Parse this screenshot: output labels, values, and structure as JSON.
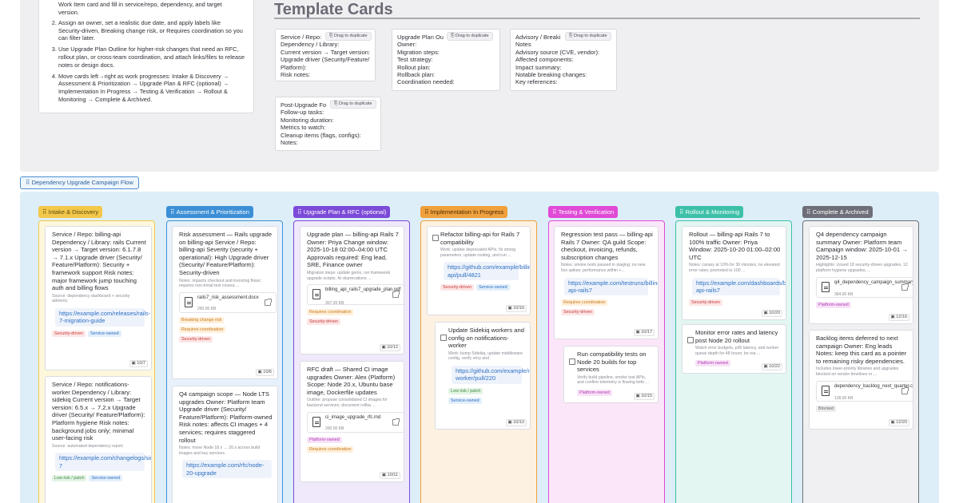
{
  "instructions": {
    "line0": "Work Item card and fill in service/repo, dependency, and target",
    "line0b": "version.",
    "items": [
      "Assign an owner, set a realistic due date, and apply labels like Security-driven, Breaking change risk, or Requires coordination so you can filter later.",
      "Use Upgrade Plan Outline for higher-risk changes that need an RFC, rollout plan, or cross-team coordination, and attach links/files to release notes or design docs.",
      "Move cards left→right as work progresses: Intake & Discovery → Assessment & Prioritization → Upgrade Plan & RFC (optional) → Implementation In Progress → Testing & Verification → Rollout & Monitoring → Complete & Archived."
    ]
  },
  "templates": {
    "title": "Template Cards",
    "drag_label": "Drag to duplicate",
    "cards": [
      {
        "title": "Service / Repo:",
        "lines": [
          "Dependency / Library:",
          "Current version → Target version:",
          "Upgrade driver (Security/Feature/",
          "Platform):",
          "Risk notes:"
        ]
      },
      {
        "title": "Upgrade Plan Ou",
        "lines": [
          "Owner:",
          "Migration steps:",
          "Test strategy:",
          "Rollout plan:",
          "Rollback plan:",
          "Coordination needed:"
        ]
      },
      {
        "title": "Advisory / Breaki",
        "lines": [
          "Notes",
          "Advisory source (CVE, vendor):",
          "Affected components:",
          "Impact summary:",
          "Notable breaking changes:",
          "Key references:"
        ]
      },
      {
        "title": "Post-Upgrade Fo",
        "lines": [
          "Follow-up tasks:",
          "Monitoring duration:",
          "Metrics to watch:",
          "Cleanup items (flags, configs):",
          "Notes:"
        ]
      }
    ]
  },
  "flow": {
    "section_label": "Dependency Upgrade Campaign Flow",
    "columns": [
      {
        "label": "Intake & Discovery",
        "color": "#f3c84a",
        "bg": "#fdf7dc",
        "text": "#5a4a10"
      },
      {
        "label": "Assessment & Prioritization",
        "color": "#3c8fd6",
        "bg": "#e6f1fb",
        "text": "#ffffff"
      },
      {
        "label": "Upgrade Plan & RFC (optional)",
        "color": "#7c4ad8",
        "bg": "#efe9fb",
        "text": "#ffffff"
      },
      {
        "label": "Implementation In Progress",
        "color": "#f0a03c",
        "bg": "#fdf1e2",
        "text": "#4a2e08"
      },
      {
        "label": "Testing & Verification",
        "color": "#e04ad6",
        "bg": "#fbe6f9",
        "text": "#ffffff"
      },
      {
        "label": "Rollout & Monitoring",
        "color": "#3cc0a8",
        "bg": "#e3f6f2",
        "text": "#ffffff"
      },
      {
        "label": "Complete & Archived",
        "color": "#6e6e78",
        "bg": "#f0f0f2",
        "text": "#ffffff"
      }
    ]
  },
  "cards": {
    "c1a": {
      "body": "Service / Repo: billing-api Dependency / Library: rails Current version → Target version: 6.1.7.8 → 7.1.x Upgrade driver (Security/ Feature/Platform): Security + framework support Risk notes: major framework jump touching auth and billing flows",
      "note": "Source: dependency dashboard + security advisory.",
      "link": "https://example.com/releases/rails-7-migration-guide",
      "tags": [
        "Security-driven",
        "Service-owned"
      ],
      "date": "10/7"
    },
    "c1b": {
      "body": "Service / Repo: notifications-worker Dependency / Library: sidekiq Current version → Target version: 6.5.x → 7.2.x Upgrade driver (Security/ Feature/Platform): Platform hygiene Risk notes: background jobs only; minimal user-facing risk",
      "note": "Source: automated dependency report.",
      "link": "https://example.com/changelogs/sidekiq-7",
      "tags": [
        "Low risk / patch",
        "Service-owned"
      ]
    },
    "c2a": {
      "body": "Risk assessment — Rails upgrade on billing-api Service / Repo: billing-api Severity (security + operational): High Upgrade driver (Security/ Feature/Platform): Security-driven",
      "note": "Notes: impacts checkout and invoicing flows; requires non-trivial test covera ...",
      "file": "rails7_risk_assessment.docx",
      "size": "250.00 KB",
      "tags": [
        "Breaking change risk",
        "Requires coordination",
        "Security-driven"
      ],
      "date": "10/6"
    },
    "c2b": {
      "body": "Q4 campaign scope — Node LTS upgrades Owner: Platform team Upgrade driver (Security/ Feature/Platform): Platform-owned Risk notes: affects CI images + 4 services; requires staggered rollout",
      "note": "Notes: move Node 18.x → 20.x across build images and key services.",
      "link": "https://example.com/rfc/node-20-upgrade"
    },
    "c3a": {
      "body": "Upgrade plan — billing-api Rails 7 Owner: Priya Change window: 2025-10-18 02:00–04:00 UTC Approvals required: Eng lead, SRE, Finance owner",
      "note": "Migration steps: update gems, run framework upgrade scripts, fix deprecations ...",
      "file": "billing_api_rails7_upgrade_plan.pdf",
      "size": "307.20 KB",
      "tags": [
        "Requires coordination",
        "Security-driven"
      ],
      "date": "10/12"
    },
    "c3b": {
      "body": "RFC draft — Shared CI image upgrades Owner: Alex (Platform) Scope: Node 20.x, Ubuntu base image, Dockerfile updates",
      "note": "Outline: propose consolidated CI images for backend services; document rollba ...",
      "file": "ci_image_upgrade_rfc.md",
      "size": "200.00 KB",
      "tags": [
        "Platform-owned",
        "Requires coordination"
      ],
      "date": "10/11"
    },
    "c4a": {
      "body": "Refactor billing-api for Rails 7 compatibility",
      "note": "Work: update deprecated APIs, fix strong parameters, update routing, and run ...",
      "link": "https://github.com/example/billing-api/pull/4821",
      "tags": [
        "Security-driven",
        "Service-owned"
      ],
      "date": "10/16"
    },
    "c4b": {
      "body": "Update Sidekiq workers and config on notifications-worker",
      "note": "Work: bump Sidekiq, update middleware config, verify retry and",
      "link": "https://github.com/example/notifications-worker/pull/220",
      "tags": [
        "Low risk / patch",
        "Service-owned"
      ],
      "date": "10/10"
    },
    "c5a": {
      "body": "Regression test pass — billing-api Rails 7 Owner: QA guild Scope: checkout, invoicing, refunds, subscription changes",
      "note": "Notes: smoke tests passed in staging; no new 5xx spikes; performance within +...",
      "link": "https://example.com/testruns/billing-api-rails7",
      "tags": [
        "Requires coordination",
        "Security-driven"
      ],
      "date": "10/17"
    },
    "c5b": {
      "body": "Run compatibility tests on Node 20 builds for top services",
      "note": "Verify build pipeline, smoke test APIs, and confirm telemetry is flowing befo ...",
      "tags": [
        "Platform-owned"
      ],
      "date": "10/15"
    },
    "c6a": {
      "body": "Rollout — billing-api Rails 7 to 100% traffic Owner: Priya Window: 2025-10-20 01:00–02:00 UTC",
      "note": "Notes: canary at 10% for 30 minutes; no elevated error rates; promoted to 100 ...",
      "link": "https://example.com/dashboards/billing-api-rails7",
      "tags": [
        "Security-driven"
      ],
      "date": "10/20"
    },
    "c6b": {
      "body": "Monitor error rates and latency post Node 20 rollout",
      "note": "Watch error budgets, p95 latency, and worker queue depth for 48 hours; be rea ...",
      "tags": [
        "Platform-owned"
      ],
      "date": "10/22"
    },
    "c7a": {
      "body": "Q4 dependency campaign summary Owner: Platform team Campaign window: 2025-10-01 → 2025-12-15",
      "note": "Highlights: closed 18 security-driven upgrades, 12 platform hygiene upgrades, ...",
      "file": "q4_dependency_campaign_summary.pdf",
      "size": "364.00 KB",
      "tags": [
        "Platform-owned"
      ],
      "date": "12/16"
    },
    "c7b": {
      "body": "Backlog items deferred to next campaign Owner: Eng leads Notes: keep this card as a pointer to remaining risky dependencies.",
      "note": "Includes lower-priority libraries and upgrades blocked on vendor timelines or ...",
      "file": "dependency_backlog_next_quarter.csv",
      "size": "128.00 KB",
      "tags": [
        "Blocked"
      ],
      "date": "12/20"
    }
  }
}
